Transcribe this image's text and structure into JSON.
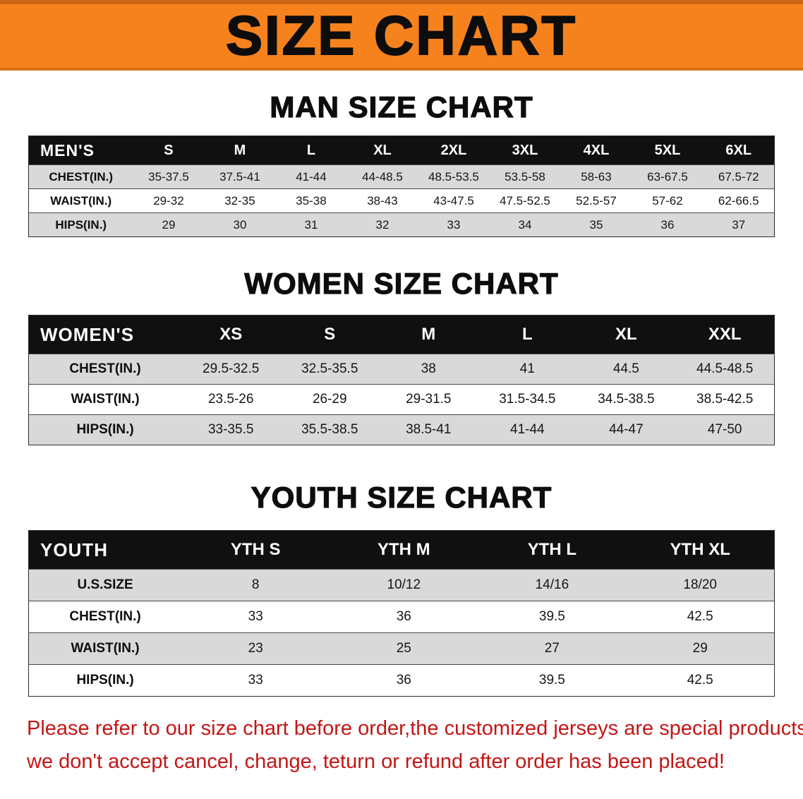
{
  "banner": {
    "title": "SIZE CHART",
    "bg_color": "#f6821e",
    "text_color": "#0d0d0d"
  },
  "sections": [
    {
      "heading": "MAN SIZE CHART",
      "table": {
        "header": [
          "MEN'S",
          "S",
          "M",
          "L",
          "XL",
          "2XL",
          "3XL",
          "4XL",
          "5XL",
          "6XL"
        ],
        "rows": [
          {
            "label": "CHEST(IN.)",
            "values": [
              "35-37.5",
              "37.5-41",
              "41-44",
              "44-48.5",
              "48.5-53.5",
              "53.5-58",
              "58-63",
              "63-67.5",
              "67.5-72"
            ]
          },
          {
            "label": "WAIST(IN.)",
            "values": [
              "29-32",
              "32-35",
              "35-38",
              "38-43",
              "43-47.5",
              "47.5-52.5",
              "52.5-57",
              "57-62",
              "62-66.5"
            ]
          },
          {
            "label": "HIPS(IN.)",
            "values": [
              "29",
              "30",
              "31",
              "32",
              "33",
              "34",
              "35",
              "36",
              "37"
            ]
          }
        ]
      }
    },
    {
      "heading": "WOMEN SIZE CHART",
      "table": {
        "header": [
          "WOMEN'S",
          "XS",
          "S",
          "M",
          "L",
          "XL",
          "XXL"
        ],
        "rows": [
          {
            "label": "CHEST(IN.)",
            "values": [
              "29.5-32.5",
              "32.5-35.5",
              "38",
              "41",
              "44.5",
              "44.5-48.5"
            ]
          },
          {
            "label": "WAIST(IN.)",
            "values": [
              "23.5-26",
              "26-29",
              "29-31.5",
              "31.5-34.5",
              "34.5-38.5",
              "38.5-42.5"
            ]
          },
          {
            "label": "HIPS(IN.)",
            "values": [
              "33-35.5",
              "35.5-38.5",
              "38.5-41",
              "41-44",
              "44-47",
              "47-50"
            ]
          }
        ]
      }
    },
    {
      "heading": "YOUTH SIZE CHART",
      "table": {
        "header": [
          "YOUTH",
          "YTH S",
          "YTH M",
          "YTH L",
          "YTH XL"
        ],
        "rows": [
          {
            "label": "U.S.SIZE",
            "values": [
              "8",
              "10/12",
              "14/16",
              "18/20"
            ]
          },
          {
            "label": "CHEST(IN.)",
            "values": [
              "33",
              "36",
              "39.5",
              "42.5"
            ]
          },
          {
            "label": "WAIST(IN.)",
            "values": [
              "23",
              "25",
              "27",
              "29"
            ]
          },
          {
            "label": "HIPS(IN.)",
            "values": [
              "33",
              "36",
              "39.5",
              "42.5"
            ]
          }
        ]
      }
    }
  ],
  "disclaimer": {
    "line1": "Please refer to our size chart before order,the customized jerseys are special products,",
    "line2": "we don't accept cancel, change, teturn or refund after order has been placed!",
    "color": "#c31616"
  },
  "colors": {
    "header_bar": "#101010",
    "row_alt": "#d9d9d9",
    "row_base": "#ffffff"
  }
}
